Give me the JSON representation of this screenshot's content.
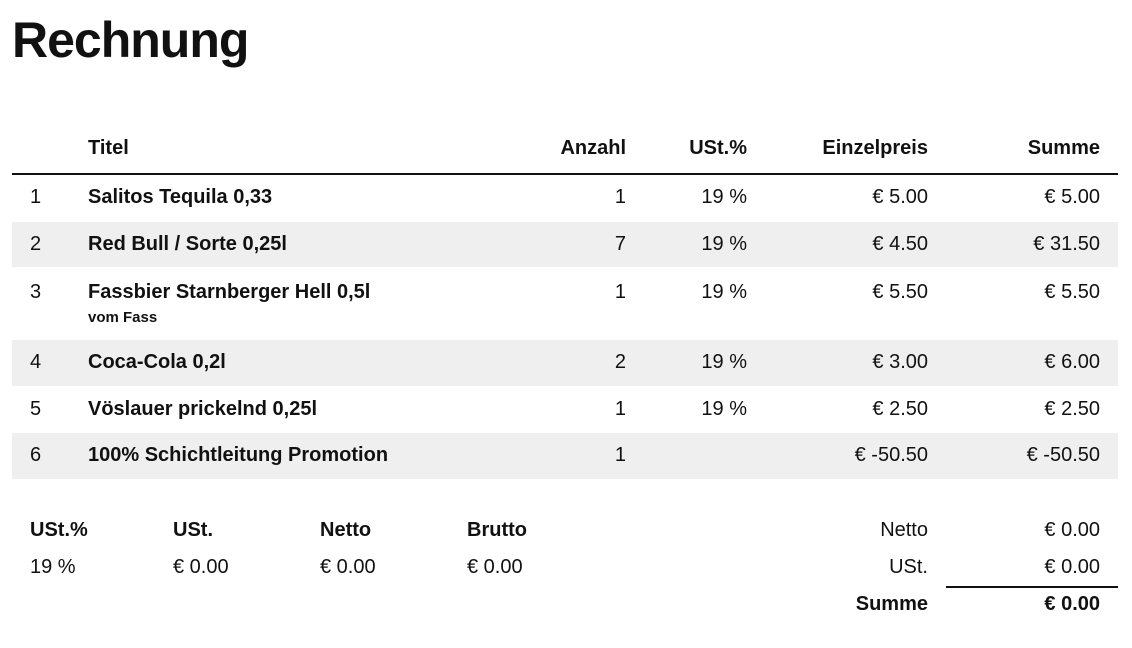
{
  "header": {
    "title": "Rechnung"
  },
  "table": {
    "columns": {
      "title": "Titel",
      "quantity": "Anzahl",
      "vat": "USt.%",
      "unit_price": "Einzelpreis",
      "total": "Summe"
    },
    "rows": [
      {
        "index": "1",
        "title": "Salitos Tequila 0,33",
        "quantity": "1",
        "vat": "19 %",
        "unit_price": "€ 5.00",
        "total": "€ 5.00"
      },
      {
        "index": "2",
        "title": "Red Bull / Sorte 0,25l",
        "quantity": "7",
        "vat": "19 %",
        "unit_price": "€ 4.50",
        "total": "€ 31.50"
      },
      {
        "index": "3",
        "title": "Fassbier Starnberger Hell 0,5l",
        "note": "vom Fass",
        "quantity": "1",
        "vat": "19 %",
        "unit_price": "€ 5.50",
        "total": "€ 5.50"
      },
      {
        "index": "4",
        "title": "Coca-Cola 0,2l",
        "quantity": "2",
        "vat": "19 %",
        "unit_price": "€ 3.00",
        "total": "€ 6.00"
      },
      {
        "index": "5",
        "title": "Vöslauer prickelnd 0,25l",
        "quantity": "1",
        "vat": "19 %",
        "unit_price": "€ 2.50",
        "total": "€ 2.50"
      },
      {
        "index": "6",
        "title": "100% Schichtleitung Promotion",
        "quantity": "1",
        "unit_price": "€ -50.50",
        "total": "€ -50.50"
      }
    ]
  },
  "tax_summary": {
    "columns": [
      "USt.%",
      "USt.",
      "Netto",
      "Brutto"
    ],
    "rows": [
      [
        "19 %",
        "€ 0.00",
        "€ 0.00",
        "€ 0.00"
      ]
    ]
  },
  "totals": [
    {
      "label": "Netto",
      "value": "€ 0.00"
    },
    {
      "label": "USt.",
      "value": "€ 0.00"
    },
    {
      "label": "Summe",
      "value": "€ 0.00"
    }
  ]
}
